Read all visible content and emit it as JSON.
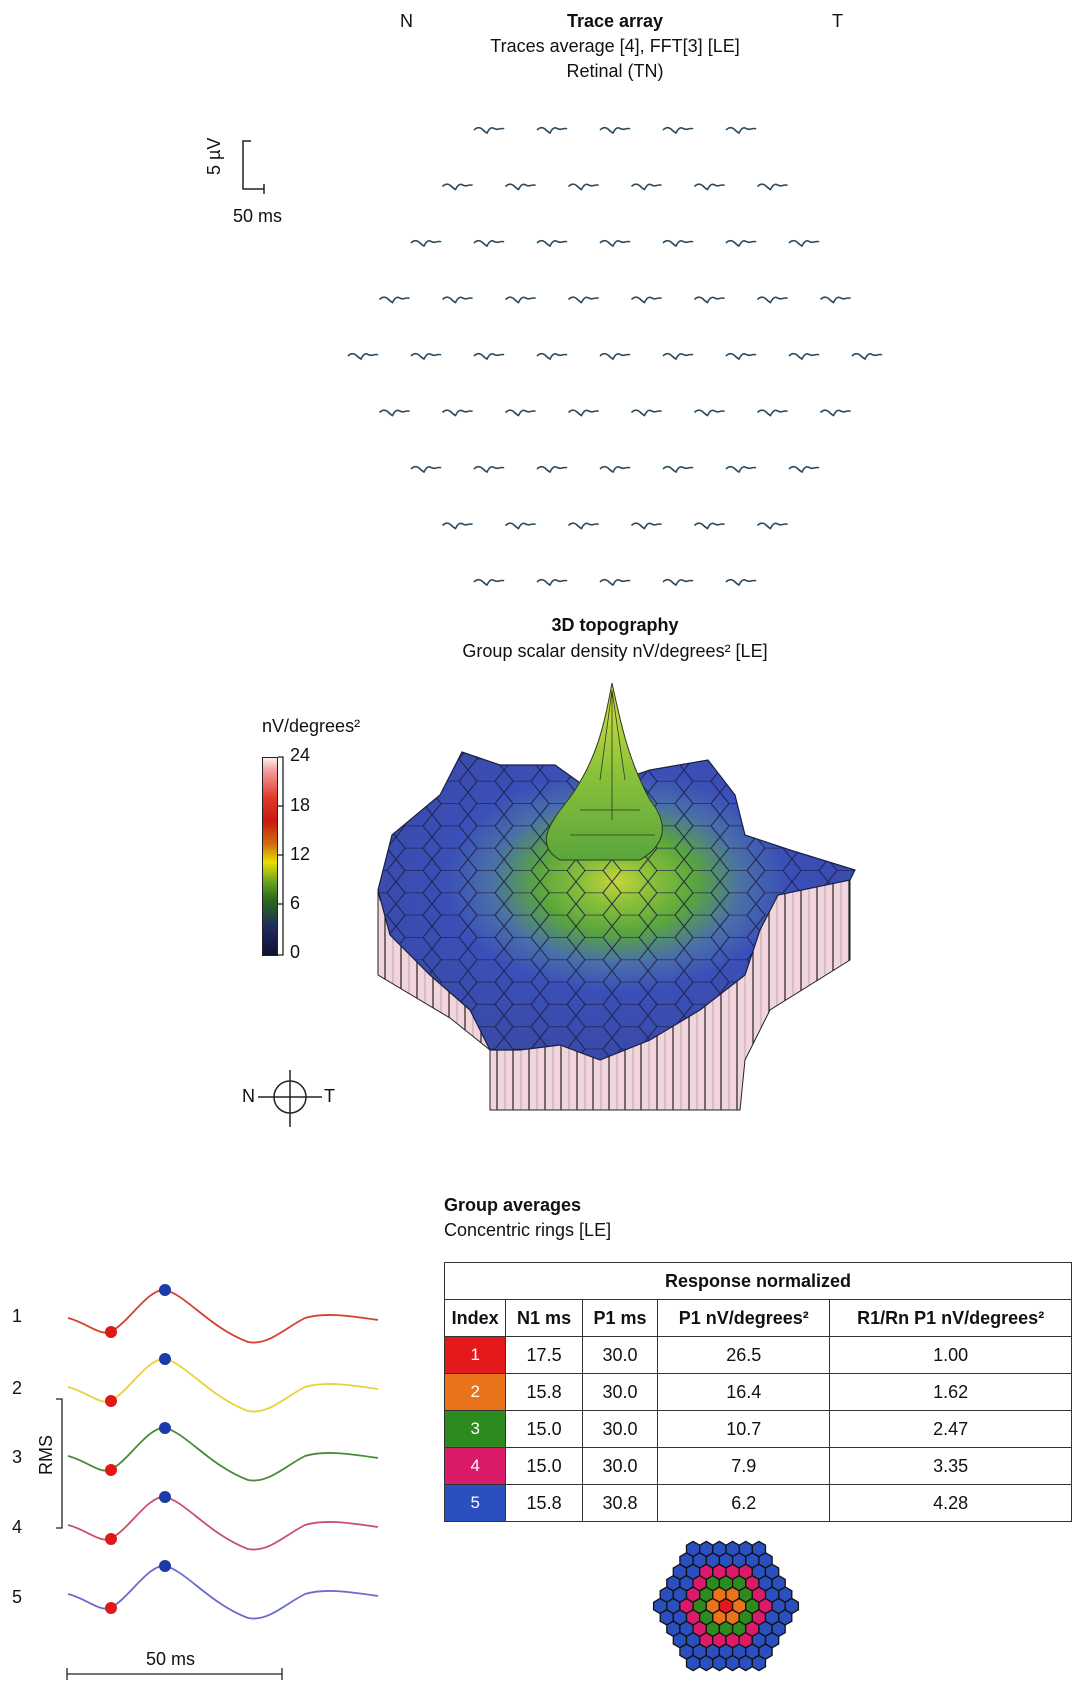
{
  "trace_array": {
    "title": "Trace array",
    "subtitle": "Traces average [4], FFT[3] [LE]",
    "subtitle2": "Retinal (TN)",
    "left_label": "N",
    "right_label": "T",
    "scale_voltage": "5 µV",
    "scale_time": "50 ms",
    "row_counts": [
      5,
      6,
      7,
      8,
      9,
      8,
      7,
      6,
      5
    ]
  },
  "topography": {
    "title": "3D topography",
    "subtitle": "Group scalar density nV/degrees² [LE]",
    "colorbar_label": "nV/degrees²",
    "colorbar_ticks": [
      "24",
      "18",
      "12",
      "6",
      "0"
    ],
    "orientation_left": "N",
    "orientation_right": "T"
  },
  "group_averages": {
    "title": "Group averages",
    "subtitle": "Concentric rings [LE]",
    "rms_label": "RMS",
    "time_scale": "50 ms",
    "ring_labels": [
      "1",
      "2",
      "3",
      "4",
      "5"
    ]
  },
  "table": {
    "header": "Response normalized",
    "columns": [
      "Index",
      "N1 ms",
      "P1 ms",
      "P1 nV/degrees²",
      "R1/Rn P1 nV/degrees²"
    ],
    "rows": [
      {
        "index": "1",
        "n1": "17.5",
        "p1": "30.0",
        "p1_density": "26.5",
        "ratio": "1.00",
        "color": "#e3191c"
      },
      {
        "index": "2",
        "n1": "15.8",
        "p1": "30.0",
        "p1_density": "16.4",
        "ratio": "1.62",
        "color": "#e8731a"
      },
      {
        "index": "3",
        "n1": "15.0",
        "p1": "30.0",
        "p1_density": "10.7",
        "ratio": "2.47",
        "color": "#2c8a1f"
      },
      {
        "index": "4",
        "n1": "15.0",
        "p1": "30.0",
        "p1_density": "7.9",
        "ratio": "3.35",
        "color": "#dc1a6a"
      },
      {
        "index": "5",
        "n1": "15.8",
        "p1": "30.8",
        "p1_density": "6.2",
        "ratio": "4.28",
        "color": "#2a4fbf"
      }
    ]
  },
  "chart_data": {
    "type": "table",
    "colors": {
      "trace": "#2a4a5e",
      "surface_low": "#3b4fb8",
      "surface_mid": "#5aa63c",
      "surface_high": "#c8d43a",
      "wall": "#f2d4dc",
      "ring1": "#d6402a",
      "ring2": "#e7d23a",
      "ring3": "#4a8a3a",
      "ring4": "#c8506a",
      "ring5": "#6a6ad0",
      "trough_dot": "#e01818",
      "peak_dot": "#1b3ba8"
    }
  }
}
